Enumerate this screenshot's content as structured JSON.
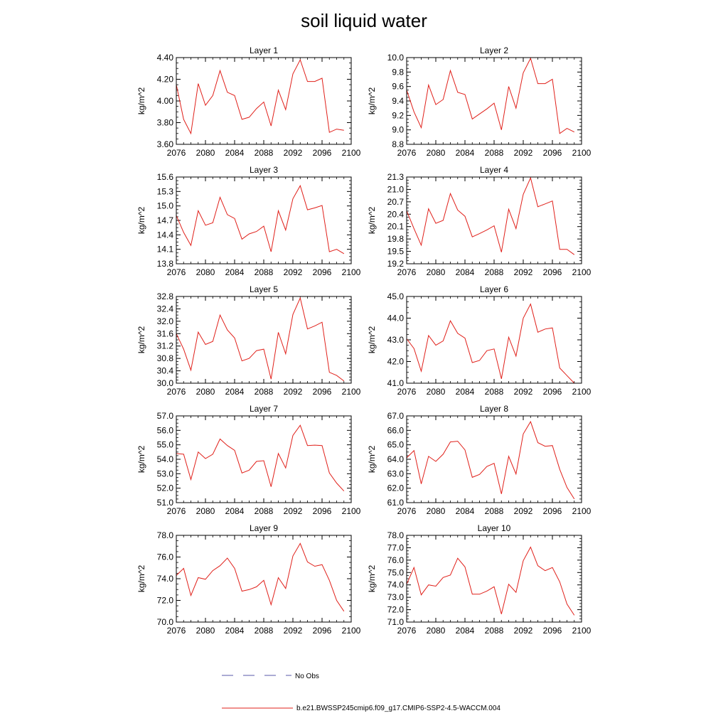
{
  "title": "soil liquid water",
  "legend": {
    "obs_label": "No Obs",
    "model_label": "b.e21.BWSSP245cmip6.f09_g17.CMIP6-SSP2-4.5-WACCM.004",
    "obs_color": "#5a5aa8",
    "model_color": "#e0201a"
  },
  "chart_data": [
    {
      "type": "line",
      "title": "Layer 1",
      "ylabel": "kg/m^2",
      "xlim": [
        2076,
        2100
      ],
      "ylim": [
        3.6,
        4.4
      ],
      "xticks": [
        2076,
        2080,
        2084,
        2088,
        2092,
        2096,
        2100
      ],
      "yticks": [
        "3.60",
        "3.80",
        "4.00",
        "4.20",
        "4.40"
      ],
      "x": [
        2076,
        2077,
        2078,
        2079,
        2080,
        2081,
        2082,
        2083,
        2084,
        2085,
        2086,
        2087,
        2088,
        2089,
        2090,
        2091,
        2092,
        2093,
        2094,
        2095,
        2096,
        2097,
        2098,
        2099
      ],
      "values": [
        4.15,
        3.83,
        3.7,
        4.16,
        3.96,
        4.05,
        4.28,
        4.08,
        4.05,
        3.83,
        3.85,
        3.93,
        3.99,
        3.77,
        4.1,
        3.92,
        4.25,
        4.38,
        4.18,
        4.18,
        4.21,
        3.71,
        3.74,
        3.73
      ]
    },
    {
      "type": "line",
      "title": "Layer 2",
      "ylabel": "kg/m^2",
      "xlim": [
        2076,
        2100
      ],
      "ylim": [
        8.8,
        10.0
      ],
      "xticks": [
        2076,
        2080,
        2084,
        2088,
        2092,
        2096,
        2100
      ],
      "yticks": [
        "8.8",
        "9.0",
        "9.2",
        "9.4",
        "9.6",
        "9.8",
        "10.0"
      ],
      "x": [
        2076,
        2077,
        2078,
        2079,
        2080,
        2081,
        2082,
        2083,
        2084,
        2085,
        2086,
        2087,
        2088,
        2089,
        2090,
        2091,
        2092,
        2093,
        2094,
        2095,
        2096,
        2097,
        2098,
        2099
      ],
      "values": [
        9.55,
        9.25,
        9.03,
        9.62,
        9.35,
        9.42,
        9.82,
        9.52,
        9.49,
        9.15,
        9.22,
        9.29,
        9.37,
        9.0,
        9.6,
        9.3,
        9.79,
        9.99,
        9.64,
        9.64,
        9.7,
        8.95,
        9.02,
        8.97
      ]
    },
    {
      "type": "line",
      "title": "Layer 3",
      "ylabel": "kg/m^2",
      "xlim": [
        2076,
        2100
      ],
      "ylim": [
        13.8,
        15.6
      ],
      "xticks": [
        2076,
        2080,
        2084,
        2088,
        2092,
        2096,
        2100
      ],
      "yticks": [
        "13.8",
        "14.1",
        "14.4",
        "14.7",
        "15.0",
        "15.3",
        "15.6"
      ],
      "x": [
        2076,
        2077,
        2078,
        2079,
        2080,
        2081,
        2082,
        2083,
        2084,
        2085,
        2086,
        2087,
        2088,
        2089,
        2090,
        2091,
        2092,
        2093,
        2094,
        2095,
        2096,
        2097,
        2098,
        2099
      ],
      "values": [
        14.8,
        14.45,
        14.18,
        14.9,
        14.6,
        14.65,
        15.18,
        14.82,
        14.74,
        14.31,
        14.42,
        14.47,
        14.58,
        14.05,
        14.9,
        14.5,
        15.15,
        15.42,
        14.92,
        14.96,
        15.01,
        14.05,
        14.1,
        14.01
      ]
    },
    {
      "type": "line",
      "title": "Layer 4",
      "ylabel": "kg/m^2",
      "xlim": [
        2076,
        2100
      ],
      "ylim": [
        19.2,
        21.3
      ],
      "xticks": [
        2076,
        2080,
        2084,
        2088,
        2092,
        2096,
        2100
      ],
      "yticks": [
        "19.2",
        "19.5",
        "19.8",
        "20.1",
        "20.4",
        "20.7",
        "21.0",
        "21.3"
      ],
      "x": [
        2076,
        2077,
        2078,
        2079,
        2080,
        2081,
        2082,
        2083,
        2084,
        2085,
        2086,
        2087,
        2088,
        2089,
        2090,
        2091,
        2092,
        2093,
        2094,
        2095,
        2096,
        2097,
        2098,
        2099
      ],
      "values": [
        20.48,
        20.05,
        19.65,
        20.53,
        20.18,
        20.25,
        20.9,
        20.5,
        20.35,
        19.85,
        19.93,
        20.02,
        20.12,
        19.48,
        20.52,
        20.05,
        20.88,
        21.28,
        20.58,
        20.65,
        20.72,
        19.55,
        19.55,
        19.42
      ]
    },
    {
      "type": "line",
      "title": "Layer 5",
      "ylabel": "kg/m^2",
      "xlim": [
        2076,
        2100
      ],
      "ylim": [
        30.0,
        32.8
      ],
      "xticks": [
        2076,
        2080,
        2084,
        2088,
        2092,
        2096,
        2100
      ],
      "yticks": [
        "30.0",
        "30.4",
        "30.8",
        "31.2",
        "31.6",
        "32.0",
        "32.4",
        "32.8"
      ],
      "x": [
        2076,
        2077,
        2078,
        2079,
        2080,
        2081,
        2082,
        2083,
        2084,
        2085,
        2086,
        2087,
        2088,
        2089,
        2090,
        2091,
        2092,
        2093,
        2094,
        2095,
        2096,
        2097,
        2098,
        2099
      ],
      "values": [
        31.6,
        31.1,
        30.42,
        31.65,
        31.25,
        31.35,
        32.2,
        31.72,
        31.46,
        30.72,
        30.8,
        31.05,
        31.1,
        30.13,
        31.64,
        30.95,
        32.22,
        32.75,
        31.75,
        31.85,
        31.97,
        30.35,
        30.25,
        30.07
      ]
    },
    {
      "type": "line",
      "title": "Layer 6",
      "ylabel": "kg/m^2",
      "xlim": [
        2076,
        2100
      ],
      "ylim": [
        41.0,
        45.0
      ],
      "xticks": [
        2076,
        2080,
        2084,
        2088,
        2092,
        2096,
        2100
      ],
      "yticks": [
        "41.0",
        "42.0",
        "43.0",
        "44.0",
        "45.0"
      ],
      "x": [
        2076,
        2077,
        2078,
        2079,
        2080,
        2081,
        2082,
        2083,
        2084,
        2085,
        2086,
        2087,
        2088,
        2089,
        2090,
        2091,
        2092,
        2093,
        2094,
        2095,
        2096,
        2097,
        2098,
        2099
      ],
      "values": [
        43.05,
        42.6,
        41.55,
        43.2,
        42.75,
        42.95,
        43.88,
        43.3,
        43.08,
        41.95,
        42.05,
        42.5,
        42.58,
        41.2,
        43.12,
        42.25,
        44.0,
        44.65,
        43.35,
        43.5,
        43.55,
        41.7,
        41.35,
        41.0
      ]
    },
    {
      "type": "line",
      "title": "Layer 7",
      "ylabel": "kg/m^2",
      "xlim": [
        2076,
        2100
      ],
      "ylim": [
        51.0,
        57.0
      ],
      "xticks": [
        2076,
        2080,
        2084,
        2088,
        2092,
        2096,
        2100
      ],
      "yticks": [
        "51.0",
        "52.0",
        "53.0",
        "54.0",
        "55.0",
        "56.0",
        "57.0"
      ],
      "x": [
        2076,
        2077,
        2078,
        2079,
        2080,
        2081,
        2082,
        2083,
        2084,
        2085,
        2086,
        2087,
        2088,
        2089,
        2090,
        2091,
        2092,
        2093,
        2094,
        2095,
        2096,
        2097,
        2098,
        2099
      ],
      "values": [
        54.4,
        54.35,
        52.6,
        54.5,
        54.05,
        54.35,
        55.4,
        54.95,
        54.62,
        53.05,
        53.25,
        53.85,
        53.9,
        52.1,
        54.4,
        53.4,
        55.65,
        56.35,
        54.95,
        54.98,
        54.95,
        53.05,
        52.35,
        51.8
      ]
    },
    {
      "type": "line",
      "title": "Layer 8",
      "ylabel": "kg/m^2",
      "xlim": [
        2076,
        2100
      ],
      "ylim": [
        61.0,
        67.0
      ],
      "xticks": [
        2076,
        2080,
        2084,
        2088,
        2092,
        2096,
        2100
      ],
      "yticks": [
        "61.0",
        "62.0",
        "63.0",
        "64.0",
        "65.0",
        "66.0",
        "67.0"
      ],
      "x": [
        2076,
        2077,
        2078,
        2079,
        2080,
        2081,
        2082,
        2083,
        2084,
        2085,
        2086,
        2087,
        2088,
        2089,
        2090,
        2091,
        2092,
        2093,
        2094,
        2095,
        2096,
        2097,
        2098,
        2099
      ],
      "values": [
        64.1,
        64.6,
        62.3,
        64.2,
        63.85,
        64.35,
        65.2,
        65.25,
        64.65,
        62.75,
        62.95,
        63.5,
        63.72,
        61.6,
        64.2,
        62.98,
        65.75,
        66.6,
        65.15,
        64.9,
        64.95,
        63.3,
        62.05,
        61.25
      ]
    },
    {
      "type": "line",
      "title": "Layer 9",
      "ylabel": "kg/m^2",
      "xlim": [
        2076,
        2100
      ],
      "ylim": [
        70.0,
        78.0
      ],
      "xticks": [
        2076,
        2080,
        2084,
        2088,
        2092,
        2096,
        2100
      ],
      "yticks": [
        "70.0",
        "72.0",
        "74.0",
        "76.0",
        "78.0"
      ],
      "x": [
        2076,
        2077,
        2078,
        2079,
        2080,
        2081,
        2082,
        2083,
        2084,
        2085,
        2086,
        2087,
        2088,
        2089,
        2090,
        2091,
        2092,
        2093,
        2094,
        2095,
        2096,
        2097,
        2098,
        2099
      ],
      "values": [
        74.3,
        74.95,
        72.45,
        74.1,
        73.95,
        74.75,
        75.2,
        75.9,
        74.95,
        72.85,
        73.0,
        73.25,
        73.85,
        71.6,
        74.1,
        73.1,
        76.1,
        77.25,
        75.55,
        75.15,
        75.3,
        73.85,
        72.0,
        71.0
      ]
    },
    {
      "type": "line",
      "title": "Layer 10",
      "ylabel": "kg/m^2",
      "xlim": [
        2076,
        2100
      ],
      "ylim": [
        71.0,
        78.0
      ],
      "xticks": [
        2076,
        2080,
        2084,
        2088,
        2092,
        2096,
        2100
      ],
      "yticks": [
        "71.0",
        "72.0",
        "73.0",
        "74.0",
        "75.0",
        "76.0",
        "77.0",
        "78.0"
      ],
      "x": [
        2076,
        2077,
        2078,
        2079,
        2080,
        2081,
        2082,
        2083,
        2084,
        2085,
        2086,
        2087,
        2088,
        2089,
        2090,
        2091,
        2092,
        2093,
        2094,
        2095,
        2096,
        2097,
        2098,
        2099
      ],
      "values": [
        74.05,
        75.4,
        73.2,
        74.0,
        73.9,
        74.6,
        74.8,
        76.15,
        75.45,
        73.25,
        73.25,
        73.5,
        73.85,
        71.65,
        74.05,
        73.4,
        75.95,
        77.05,
        75.55,
        75.15,
        75.4,
        74.25,
        72.45,
        71.55
      ]
    }
  ]
}
